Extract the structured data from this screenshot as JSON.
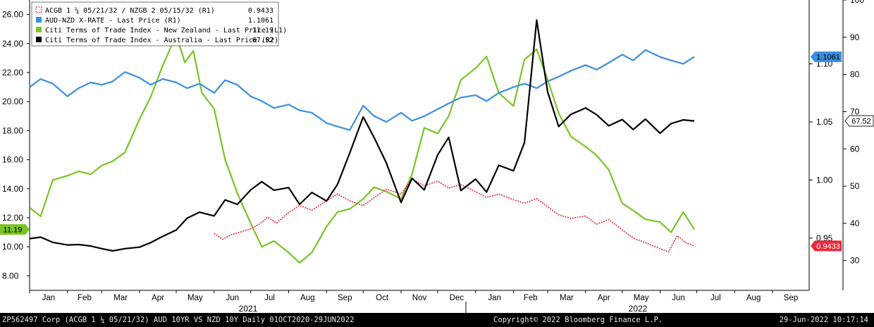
{
  "chart_data": {
    "type": "line",
    "x_range": [
      "2021-01-01",
      "2022-10-01"
    ],
    "axes": {
      "left": {
        "ticks": [
          "26.00",
          "24.00",
          "22.00",
          "20.00",
          "18.00",
          "16.00",
          "14.00",
          "12.00",
          "10.00",
          "8.00"
        ],
        "ylim": [
          7,
          27
        ],
        "label": ""
      },
      "r1": {
        "ticks": [
          "1.10",
          "1.05",
          "1.00",
          "0.95"
        ],
        "ylim": [
          0.905,
          1.155
        ],
        "label": ""
      },
      "r2": {
        "ticks": [
          "100",
          "90",
          "80",
          "70",
          "60",
          "50",
          "40",
          "30"
        ],
        "ylim": [
          22,
          100
        ],
        "label": ""
      }
    },
    "x_month_labels": [
      "Jan",
      "Feb",
      "Mar",
      "Apr",
      "May",
      "Jun",
      "Jul",
      "Aug",
      "Sep",
      "Oct",
      "Nov",
      "Dec",
      "Jan",
      "Feb",
      "Mar",
      "Apr",
      "May",
      "Jun",
      "Jul",
      "Aug",
      "Sep"
    ],
    "year_labels": [
      "2021",
      "2022"
    ],
    "legend_position": "top-left",
    "grid": false,
    "series": [
      {
        "name": "ACGB 1 ¼ 05/21/32 / NZGB 2 05/15/32 (R1)",
        "last": "0.9433",
        "color": "#e8283a",
        "style": "dotted",
        "axis": "r1",
        "points": [
          [
            "2021-06-01",
            0.954
          ],
          [
            "2021-06-08",
            0.949
          ],
          [
            "2021-06-15",
            0.953
          ],
          [
            "2021-06-22",
            0.955
          ],
          [
            "2021-07-01",
            0.958
          ],
          [
            "2021-07-08",
            0.962
          ],
          [
            "2021-07-15",
            0.968
          ],
          [
            "2021-07-22",
            0.963
          ],
          [
            "2021-08-01",
            0.972
          ],
          [
            "2021-08-10",
            0.978
          ],
          [
            "2021-08-20",
            0.974
          ],
          [
            "2021-09-01",
            0.982
          ],
          [
            "2021-09-10",
            0.988
          ],
          [
            "2021-09-20",
            0.982
          ],
          [
            "2021-10-01",
            0.978
          ],
          [
            "2021-10-10",
            0.985
          ],
          [
            "2021-10-20",
            0.992
          ],
          [
            "2021-11-01",
            0.988
          ],
          [
            "2021-11-10",
            1.001
          ],
          [
            "2021-11-20",
            0.995
          ],
          [
            "2021-12-01",
            0.999
          ],
          [
            "2021-12-10",
            0.993
          ],
          [
            "2021-12-20",
            0.996
          ],
          [
            "2022-01-01",
            0.99
          ],
          [
            "2022-01-10",
            0.985
          ],
          [
            "2022-01-20",
            0.988
          ],
          [
            "2022-02-01",
            0.983
          ],
          [
            "2022-02-10",
            0.98
          ],
          [
            "2022-02-20",
            0.984
          ],
          [
            "2022-03-01",
            0.977
          ],
          [
            "2022-03-10",
            0.97
          ],
          [
            "2022-03-20",
            0.967
          ],
          [
            "2022-04-01",
            0.969
          ],
          [
            "2022-04-10",
            0.962
          ],
          [
            "2022-04-20",
            0.966
          ],
          [
            "2022-05-01",
            0.957
          ],
          [
            "2022-05-10",
            0.95
          ],
          [
            "2022-05-20",
            0.946
          ],
          [
            "2022-06-01",
            0.941
          ],
          [
            "2022-06-08",
            0.938
          ],
          [
            "2022-06-15",
            0.952
          ],
          [
            "2022-06-22",
            0.946
          ],
          [
            "2022-06-29",
            0.9433
          ]
        ]
      },
      {
        "name": "AUD-NZD X-RATE - Last Price (R1)",
        "last": "1.1061",
        "color": "#3a8fe0",
        "style": "solid",
        "axis": "r1",
        "points": [
          [
            "2021-01-01",
            1.08
          ],
          [
            "2021-01-10",
            1.087
          ],
          [
            "2021-01-20",
            1.083
          ],
          [
            "2021-02-01",
            1.072
          ],
          [
            "2021-02-10",
            1.079
          ],
          [
            "2021-02-20",
            1.084
          ],
          [
            "2021-03-01",
            1.082
          ],
          [
            "2021-03-10",
            1.085
          ],
          [
            "2021-03-20",
            1.093
          ],
          [
            "2021-04-01",
            1.088
          ],
          [
            "2021-04-10",
            1.082
          ],
          [
            "2021-04-20",
            1.087
          ],
          [
            "2021-05-01",
            1.084
          ],
          [
            "2021-05-10",
            1.079
          ],
          [
            "2021-05-20",
            1.083
          ],
          [
            "2021-06-01",
            1.075
          ],
          [
            "2021-06-10",
            1.086
          ],
          [
            "2021-06-20",
            1.082
          ],
          [
            "2021-07-01",
            1.072
          ],
          [
            "2021-07-10",
            1.068
          ],
          [
            "2021-07-20",
            1.062
          ],
          [
            "2021-08-01",
            1.065
          ],
          [
            "2021-08-10",
            1.06
          ],
          [
            "2021-08-20",
            1.058
          ],
          [
            "2021-09-01",
            1.049
          ],
          [
            "2021-09-10",
            1.046
          ],
          [
            "2021-09-20",
            1.043
          ],
          [
            "2021-10-01",
            1.064
          ],
          [
            "2021-10-10",
            1.055
          ],
          [
            "2021-10-20",
            1.05
          ],
          [
            "2021-11-01",
            1.058
          ],
          [
            "2021-11-10",
            1.051
          ],
          [
            "2021-11-20",
            1.055
          ],
          [
            "2021-12-01",
            1.061
          ],
          [
            "2021-12-10",
            1.066
          ],
          [
            "2021-12-20",
            1.071
          ],
          [
            "2022-01-01",
            1.073
          ],
          [
            "2022-01-10",
            1.068
          ],
          [
            "2022-01-20",
            1.075
          ],
          [
            "2022-02-01",
            1.08
          ],
          [
            "2022-02-10",
            1.083
          ],
          [
            "2022-02-20",
            1.079
          ],
          [
            "2022-03-01",
            1.085
          ],
          [
            "2022-03-10",
            1.089
          ],
          [
            "2022-03-20",
            1.094
          ],
          [
            "2022-04-01",
            1.099
          ],
          [
            "2022-04-10",
            1.095
          ],
          [
            "2022-04-20",
            1.101
          ],
          [
            "2022-05-01",
            1.108
          ],
          [
            "2022-05-10",
            1.103
          ],
          [
            "2022-05-20",
            1.112
          ],
          [
            "2022-06-01",
            1.106
          ],
          [
            "2022-06-10",
            1.103
          ],
          [
            "2022-06-20",
            1.1
          ],
          [
            "2022-06-29",
            1.1061
          ]
        ]
      },
      {
        "name": "Citi Terms of Trade Index - New Zealand - Last Price (L1)",
        "last": "11.19",
        "color": "#7ac425",
        "style": "solid",
        "axis": "left",
        "points": [
          [
            "2021-01-01",
            12.7
          ],
          [
            "2021-01-10",
            12.1
          ],
          [
            "2021-01-20",
            14.6
          ],
          [
            "2021-02-01",
            14.9
          ],
          [
            "2021-02-10",
            15.2
          ],
          [
            "2021-02-20",
            15.0
          ],
          [
            "2021-03-01",
            15.6
          ],
          [
            "2021-03-10",
            15.9
          ],
          [
            "2021-03-20",
            16.5
          ],
          [
            "2021-04-01",
            18.8
          ],
          [
            "2021-04-10",
            20.3
          ],
          [
            "2021-04-20",
            22.5
          ],
          [
            "2021-05-01",
            24.6
          ],
          [
            "2021-05-08",
            22.7
          ],
          [
            "2021-05-15",
            23.5
          ],
          [
            "2021-05-22",
            20.6
          ],
          [
            "2021-06-01",
            19.5
          ],
          [
            "2021-06-10",
            16.0
          ],
          [
            "2021-06-20",
            13.7
          ],
          [
            "2021-07-01",
            11.6
          ],
          [
            "2021-07-10",
            10.0
          ],
          [
            "2021-07-20",
            10.4
          ],
          [
            "2021-08-01",
            9.6
          ],
          [
            "2021-08-10",
            8.9
          ],
          [
            "2021-08-20",
            9.6
          ],
          [
            "2021-09-01",
            11.4
          ],
          [
            "2021-09-10",
            12.4
          ],
          [
            "2021-09-20",
            12.6
          ],
          [
            "2021-10-01",
            13.3
          ],
          [
            "2021-10-10",
            14.1
          ],
          [
            "2021-10-20",
            13.8
          ],
          [
            "2021-11-01",
            13.3
          ],
          [
            "2021-11-10",
            15.0
          ],
          [
            "2021-11-20",
            18.2
          ],
          [
            "2021-12-01",
            17.8
          ],
          [
            "2021-12-10",
            19.0
          ],
          [
            "2021-12-20",
            21.5
          ],
          [
            "2022-01-01",
            22.3
          ],
          [
            "2022-01-10",
            23.1
          ],
          [
            "2022-01-20",
            20.6
          ],
          [
            "2022-02-01",
            19.7
          ],
          [
            "2022-02-10",
            22.9
          ],
          [
            "2022-02-20",
            23.6
          ],
          [
            "2022-03-01",
            21.5
          ],
          [
            "2022-03-10",
            19.2
          ],
          [
            "2022-03-20",
            17.6
          ],
          [
            "2022-04-01",
            16.9
          ],
          [
            "2022-04-10",
            16.3
          ],
          [
            "2022-04-20",
            15.3
          ],
          [
            "2022-05-01",
            13.0
          ],
          [
            "2022-05-10",
            12.5
          ],
          [
            "2022-05-20",
            11.9
          ],
          [
            "2022-06-01",
            11.7
          ],
          [
            "2022-06-10",
            11.0
          ],
          [
            "2022-06-20",
            12.4
          ],
          [
            "2022-06-29",
            11.19
          ]
        ]
      },
      {
        "name": "Citi Terms of Trade Index - Australia - Last Price (R2)",
        "last": "67.52",
        "color": "#000000",
        "style": "solid",
        "axis": "r2",
        "points": [
          [
            "2021-01-01",
            35.9
          ],
          [
            "2021-01-10",
            36.3
          ],
          [
            "2021-01-20",
            34.9
          ],
          [
            "2021-02-01",
            34.2
          ],
          [
            "2021-02-10",
            34.3
          ],
          [
            "2021-02-20",
            33.9
          ],
          [
            "2021-03-01",
            33.2
          ],
          [
            "2021-03-10",
            32.6
          ],
          [
            "2021-03-20",
            33.2
          ],
          [
            "2021-04-01",
            33.6
          ],
          [
            "2021-04-10",
            34.8
          ],
          [
            "2021-04-20",
            36.5
          ],
          [
            "2021-05-01",
            38.2
          ],
          [
            "2021-05-10",
            41.4
          ],
          [
            "2021-05-20",
            43.0
          ],
          [
            "2021-06-01",
            42.0
          ],
          [
            "2021-06-10",
            46.3
          ],
          [
            "2021-06-20",
            45.1
          ],
          [
            "2021-07-01",
            49.0
          ],
          [
            "2021-07-10",
            51.2
          ],
          [
            "2021-07-20",
            48.9
          ],
          [
            "2021-08-01",
            49.6
          ],
          [
            "2021-08-10",
            45.1
          ],
          [
            "2021-08-20",
            48.3
          ],
          [
            "2021-09-01",
            46.0
          ],
          [
            "2021-09-10",
            50.5
          ],
          [
            "2021-09-20",
            58.9
          ],
          [
            "2021-10-01",
            68.6
          ],
          [
            "2021-10-10",
            63.0
          ],
          [
            "2021-10-20",
            56.2
          ],
          [
            "2021-11-01",
            45.6
          ],
          [
            "2021-11-10",
            52.1
          ],
          [
            "2021-11-20",
            49.0
          ],
          [
            "2021-12-01",
            58.4
          ],
          [
            "2021-12-10",
            63.1
          ],
          [
            "2021-12-20",
            48.8
          ],
          [
            "2022-01-01",
            51.9
          ],
          [
            "2022-01-10",
            48.4
          ],
          [
            "2022-01-20",
            55.6
          ],
          [
            "2022-02-01",
            54.1
          ],
          [
            "2022-02-10",
            61.7
          ],
          [
            "2022-02-20",
            94.6
          ],
          [
            "2022-03-01",
            75.3
          ],
          [
            "2022-03-10",
            66.0
          ],
          [
            "2022-03-20",
            69.3
          ],
          [
            "2022-04-01",
            71.0
          ],
          [
            "2022-04-10",
            69.2
          ],
          [
            "2022-04-20",
            66.2
          ],
          [
            "2022-05-01",
            67.9
          ],
          [
            "2022-05-10",
            65.2
          ],
          [
            "2022-05-20",
            68.0
          ],
          [
            "2022-06-01",
            64.2
          ],
          [
            "2022-06-10",
            66.8
          ],
          [
            "2022-06-20",
            67.8
          ],
          [
            "2022-06-29",
            67.52
          ]
        ]
      }
    ]
  },
  "footer": {
    "left": "ZP562497 Corp (ACGB 1 ¼ 05/21/32) AUD 10YR VS NZD 10Y  Daily 01OCT2020-29JUN2022",
    "center": "Copyright© 2022 Bloomberg Finance L.P.",
    "right": "29-Jun-2022 10:17:14"
  }
}
